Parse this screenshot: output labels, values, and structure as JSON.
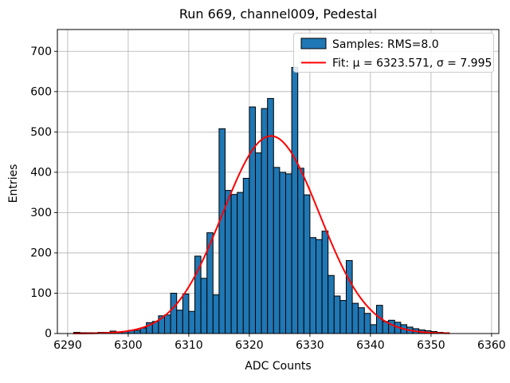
{
  "chart_data": {
    "type": "bar",
    "subtype": "histogram-with-gaussian-fit",
    "title": "Run 669, channel009, Pedestal",
    "xlabel": "ADC Counts",
    "ylabel": "Entries",
    "xlim": [
      6288.3,
      6361.2
    ],
    "ylim": [
      0,
      754
    ],
    "xticks": [
      6290,
      6300,
      6310,
      6320,
      6330,
      6340,
      6350,
      6360
    ],
    "yticks": [
      0,
      100,
      200,
      300,
      400,
      500,
      600,
      700
    ],
    "grid": true,
    "grid_color": "#b0b0b0",
    "bar_color": "#1f77b4",
    "bar_edge_color": "#000000",
    "fit_color": "#ff0000",
    "background_color": "#ffffff",
    "legend_position": "top-right",
    "legend": [
      {
        "type": "patch",
        "label": "Samples: RMS=8.0"
      },
      {
        "type": "line",
        "label": "Fit: μ = 6323.571, σ = 7.995"
      }
    ],
    "bins": {
      "start": 6291,
      "width": 1
    },
    "counts": [
      3,
      2,
      2,
      2,
      3,
      3,
      6,
      4,
      5,
      8,
      8,
      14,
      27,
      30,
      44,
      46,
      100,
      58,
      98,
      55,
      192,
      137,
      250,
      96,
      508,
      355,
      345,
      350,
      385,
      562,
      448,
      558,
      583,
      412,
      400,
      396,
      660,
      410,
      344,
      238,
      233,
      254,
      144,
      93,
      82,
      181,
      75,
      64,
      50,
      22,
      70,
      30,
      33,
      28,
      22,
      16,
      12,
      9,
      7,
      5,
      3,
      2
    ],
    "fit": {
      "mu": 6323.571,
      "sigma": 7.995,
      "amplitude": 490,
      "x_start": 6291,
      "x_end": 6353
    },
    "stats": {
      "rms": "8.0",
      "mu": "6323.571",
      "sigma": "7.995"
    }
  }
}
